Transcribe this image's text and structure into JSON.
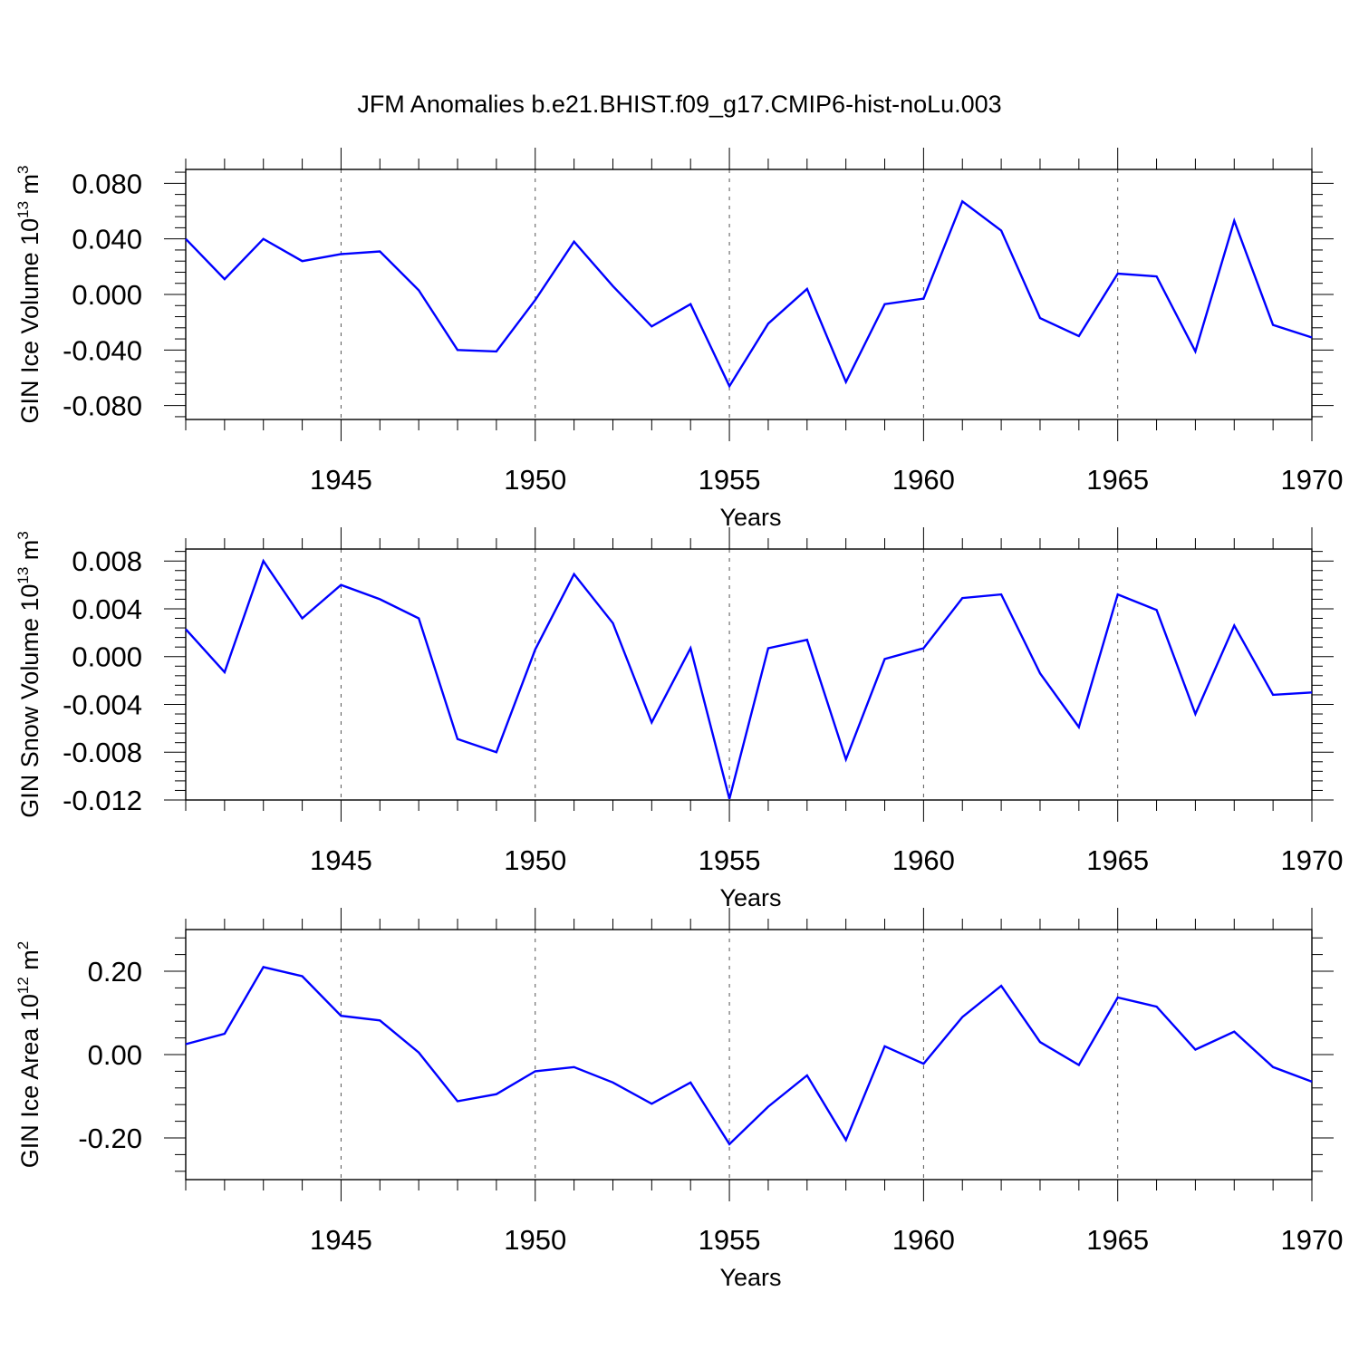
{
  "title": "JFM Anomalies b.e21.BHIST.f09_g17.CMIP6-hist-noLu.003",
  "chart_data": [
    {
      "type": "line",
      "ylabel": {
        "text": "GIN Ice Volume 10",
        "sup1": "13",
        "unit": " m",
        "sup2": "3"
      },
      "xlabel": "Years",
      "xlim": [
        1941,
        1970
      ],
      "ylim": [
        -0.09,
        0.09
      ],
      "xticks": [
        1945,
        1950,
        1955,
        1960,
        1965,
        1970
      ],
      "xtick_labels": [
        "1945",
        "1950",
        "1955",
        "1960",
        "1965",
        "1970"
      ],
      "yticks": [
        0.08,
        0.04,
        0.0,
        -0.04,
        -0.08
      ],
      "ytick_labels": [
        "0.080",
        "0.040",
        "0.000",
        "-0.040",
        "-0.080"
      ],
      "grid": "vertical dashed at labeled years",
      "series": [
        {
          "color": "#0000ff",
          "x": [
            1941,
            1942,
            1943,
            1944,
            1945,
            1946,
            1947,
            1948,
            1949,
            1950,
            1951,
            1952,
            1953,
            1954,
            1955,
            1956,
            1957,
            1958,
            1959,
            1960,
            1961,
            1962,
            1963,
            1964,
            1965,
            1966,
            1967,
            1968,
            1969,
            1970
          ],
          "y": [
            0.04,
            0.011,
            0.04,
            0.024,
            0.029,
            0.031,
            0.003,
            -0.04,
            -0.041,
            -0.004,
            0.038,
            0.006,
            -0.023,
            -0.007,
            -0.066,
            -0.021,
            0.004,
            -0.063,
            -0.007,
            -0.003,
            0.067,
            0.046,
            -0.017,
            -0.03,
            0.015,
            0.013,
            -0.041,
            0.053,
            -0.022,
            -0.031
          ]
        }
      ]
    },
    {
      "type": "line",
      "ylabel": {
        "text": "GIN Snow Volume 10",
        "sup1": "13",
        "unit": " m",
        "sup2": "3"
      },
      "xlabel": "Years",
      "xlim": [
        1941,
        1970
      ],
      "ylim": [
        -0.012,
        0.009
      ],
      "xticks": [
        1945,
        1950,
        1955,
        1960,
        1965,
        1970
      ],
      "xtick_labels": [
        "1945",
        "1950",
        "1955",
        "1960",
        "1965",
        "1970"
      ],
      "yticks": [
        0.008,
        0.004,
        0.0,
        -0.004,
        -0.008,
        -0.012
      ],
      "ytick_labels": [
        "0.008",
        "0.004",
        "0.000",
        "-0.004",
        "-0.008",
        "-0.012"
      ],
      "grid": "vertical dashed at labeled years",
      "series": [
        {
          "color": "#0000ff",
          "x": [
            1941,
            1942,
            1943,
            1944,
            1945,
            1946,
            1947,
            1948,
            1949,
            1950,
            1951,
            1952,
            1953,
            1954,
            1955,
            1956,
            1957,
            1958,
            1959,
            1960,
            1961,
            1962,
            1963,
            1964,
            1965,
            1966,
            1967,
            1968,
            1969,
            1970
          ],
          "y": [
            0.0023,
            -0.0013,
            0.008,
            0.0032,
            0.006,
            0.0048,
            0.0032,
            -0.0069,
            -0.008,
            0.0006,
            0.0069,
            0.0028,
            -0.0055,
            0.0007,
            -0.0119,
            0.0007,
            0.0014,
            -0.0086,
            -0.0002,
            0.0007,
            0.0049,
            0.0052,
            -0.0014,
            -0.0059,
            0.0052,
            0.0039,
            -0.0048,
            0.0026,
            -0.0032,
            -0.003
          ]
        }
      ]
    },
    {
      "type": "line",
      "ylabel": {
        "text": "GIN Ice Area 10",
        "sup1": "12",
        "unit": " m",
        "sup2": "2"
      },
      "xlabel": "Years",
      "xlim": [
        1941,
        1970
      ],
      "ylim": [
        -0.3,
        0.3
      ],
      "xticks": [
        1945,
        1950,
        1955,
        1960,
        1965,
        1970
      ],
      "xtick_labels": [
        "1945",
        "1950",
        "1955",
        "1960",
        "1965",
        "1970"
      ],
      "yticks": [
        0.2,
        0.0,
        -0.2
      ],
      "ytick_labels": [
        "0.20",
        "0.00",
        "-0.20"
      ],
      "grid": "vertical dashed at labeled years",
      "series": [
        {
          "color": "#0000ff",
          "x": [
            1941,
            1942,
            1943,
            1944,
            1945,
            1946,
            1947,
            1948,
            1949,
            1950,
            1951,
            1952,
            1953,
            1954,
            1955,
            1956,
            1957,
            1958,
            1959,
            1960,
            1961,
            1962,
            1963,
            1964,
            1965,
            1966,
            1967,
            1968,
            1969,
            1970
          ],
          "y": [
            0.025,
            0.05,
            0.21,
            0.188,
            0.093,
            0.082,
            0.005,
            -0.112,
            -0.095,
            -0.04,
            -0.03,
            -0.067,
            -0.118,
            -0.067,
            -0.215,
            -0.125,
            -0.05,
            -0.205,
            0.02,
            -0.022,
            0.09,
            0.165,
            0.03,
            -0.025,
            0.137,
            0.115,
            0.012,
            0.055,
            -0.03,
            -0.065
          ]
        }
      ]
    }
  ]
}
